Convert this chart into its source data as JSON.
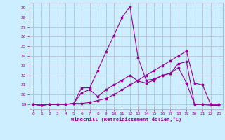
{
  "xlabel": "Windchill (Refroidissement éolien,°C)",
  "bg_color": "#cceeff",
  "line_color": "#990099",
  "xlim": [
    -0.5,
    23.5
  ],
  "ylim": [
    18.5,
    29.5
  ],
  "xticks": [
    0,
    1,
    2,
    3,
    4,
    5,
    6,
    7,
    8,
    9,
    10,
    11,
    12,
    13,
    14,
    15,
    16,
    17,
    18,
    19,
    20,
    21,
    22,
    23
  ],
  "yticks": [
    19,
    20,
    21,
    22,
    23,
    24,
    25,
    26,
    27,
    28,
    29
  ],
  "grid_color": "#b0b8cc",
  "lines": [
    {
      "x": [
        0,
        1,
        2,
        3,
        4,
        5,
        6,
        7,
        8,
        9,
        10,
        11,
        12,
        13,
        14,
        15,
        16,
        17,
        18,
        19,
        20,
        21,
        22,
        23
      ],
      "y": [
        19,
        18.9,
        19,
        19,
        19.0,
        19.1,
        19.1,
        19.2,
        19.4,
        19.6,
        20.0,
        20.5,
        21.0,
        21.5,
        22.0,
        22.5,
        23.0,
        23.5,
        24.0,
        24.5,
        21.2,
        21.0,
        19.0,
        19.0
      ]
    },
    {
      "x": [
        0,
        1,
        2,
        3,
        4,
        5,
        6,
        7,
        8,
        9,
        10,
        11,
        12,
        13,
        14,
        15,
        16,
        17,
        18,
        19,
        20,
        21,
        22,
        23
      ],
      "y": [
        19,
        18.9,
        19,
        19,
        19.0,
        19.1,
        20.7,
        20.7,
        22.5,
        24.4,
        26.1,
        28.0,
        29.1,
        23.8,
        21.5,
        21.6,
        22.0,
        22.2,
        23.2,
        23.4,
        19.0,
        19.0,
        18.9,
        18.9
      ]
    },
    {
      "x": [
        0,
        1,
        2,
        3,
        4,
        5,
        6,
        7,
        8,
        9,
        10,
        11,
        12,
        13,
        14,
        15,
        16,
        17,
        18,
        19,
        20,
        21,
        22,
        23
      ],
      "y": [
        19,
        18.9,
        19,
        19,
        19.0,
        19.1,
        20.2,
        20.5,
        19.8,
        20.5,
        21.0,
        21.5,
        22.0,
        21.4,
        21.2,
        21.5,
        22.0,
        22.2,
        22.8,
        21.2,
        19.0,
        19.0,
        19.0,
        19.0
      ]
    }
  ]
}
